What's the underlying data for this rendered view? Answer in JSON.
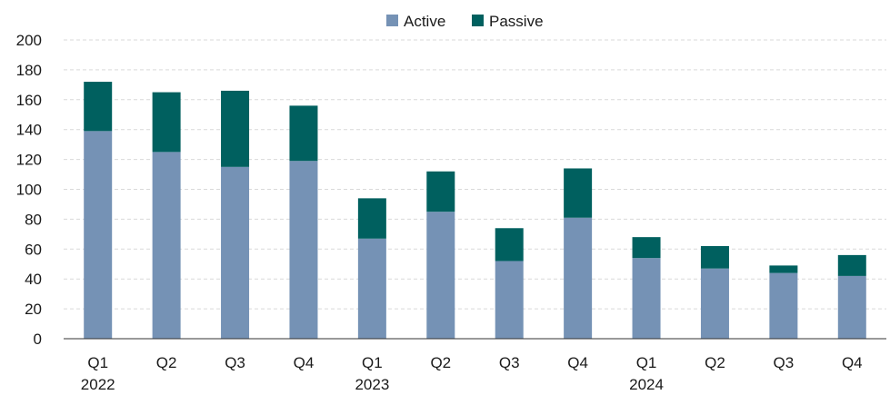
{
  "chart_data": {
    "type": "bar",
    "stacked": true,
    "categories": [
      "Q1",
      "Q2",
      "Q3",
      "Q4",
      "Q1",
      "Q2",
      "Q3",
      "Q4",
      "Q1",
      "Q2",
      "Q3",
      "Q4"
    ],
    "year_labels": [
      {
        "label": "2022",
        "index": 0
      },
      {
        "label": "2023",
        "index": 4
      },
      {
        "label": "2024",
        "index": 8
      }
    ],
    "series": [
      {
        "name": "Active",
        "color": "#7592b5",
        "values": [
          139,
          125,
          115,
          119,
          67,
          85,
          52,
          81,
          54,
          47,
          44,
          42
        ]
      },
      {
        "name": "Passive",
        "color": "#00605f",
        "values": [
          33,
          40,
          51,
          37,
          27,
          27,
          22,
          33,
          14,
          15,
          5,
          14
        ]
      }
    ],
    "ylim": [
      0,
      200
    ],
    "yticks": [
      0,
      20,
      40,
      60,
      80,
      100,
      120,
      140,
      160,
      180,
      200
    ],
    "grid": true,
    "legend_position": "top-center",
    "title": "",
    "xlabel": "",
    "ylabel": ""
  }
}
